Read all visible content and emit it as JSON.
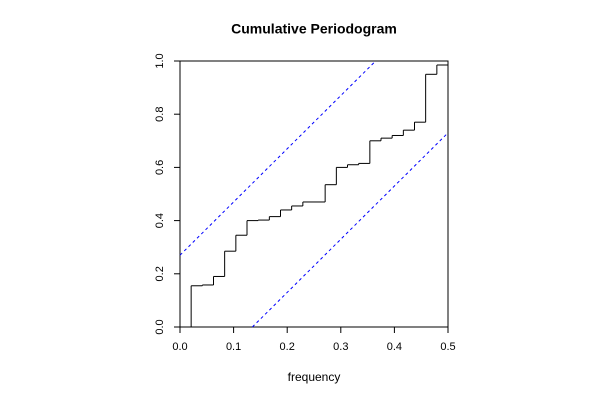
{
  "chart_data": {
    "type": "step",
    "title": "Cumulative Periodogram",
    "x_label": "frequency",
    "x": [
      0.0208,
      0.0417,
      0.0625,
      0.0833,
      0.1042,
      0.125,
      0.1458,
      0.1667,
      0.1875,
      0.2083,
      0.2292,
      0.25,
      0.2708,
      0.2917,
      0.3125,
      0.3333,
      0.3542,
      0.375,
      0.3958,
      0.4167,
      0.4375,
      0.4583,
      0.4792,
      0.5
    ],
    "values": [
      0.155,
      0.158,
      0.19,
      0.285,
      0.345,
      0.4,
      0.402,
      0.415,
      0.44,
      0.455,
      0.47,
      0.47,
      0.535,
      0.6,
      0.61,
      0.615,
      0.7,
      0.71,
      0.72,
      0.74,
      0.77,
      0.95,
      0.985,
      1.0
    ],
    "color": "#000000",
    "reference_lines": [
      {
        "x": [
          0,
          0.365
        ],
        "values": [
          0.27,
          1.0
        ],
        "color": "#0000ff"
      },
      {
        "x": [
          0.135,
          0.5
        ],
        "values": [
          0,
          0.73
        ],
        "color": "#0000ff"
      }
    ],
    "xlim": [
      0,
      0.5
    ],
    "xticks": [
      {
        "value": 0,
        "label": "0.0"
      },
      0.1,
      0.2,
      0.3,
      0.4,
      0.5
    ],
    "ylim": [
      0,
      1
    ],
    "yticks": [
      {
        "value": 0,
        "label": "0.0"
      },
      0.2,
      0.4,
      0.6,
      0.8,
      {
        "value": 1,
        "label": "1.0"
      }
    ]
  }
}
